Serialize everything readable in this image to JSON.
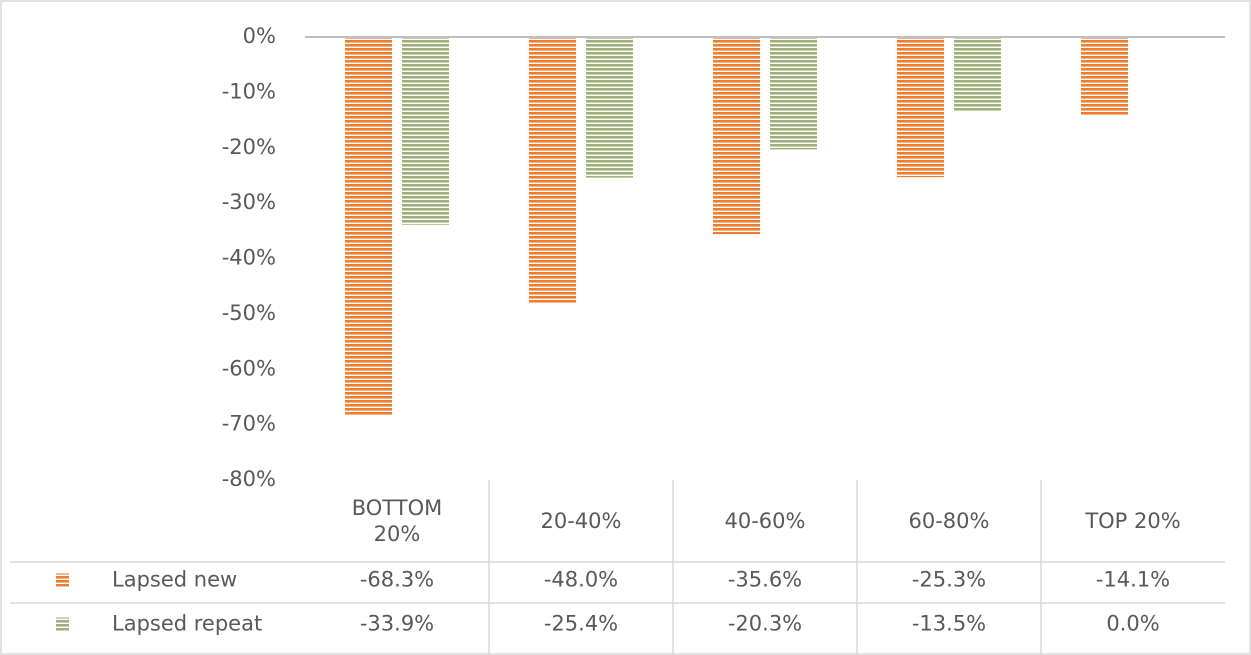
{
  "chart_data": {
    "type": "bar",
    "categories": [
      "BOTTOM 20%",
      "20-40%",
      "40-60%",
      "60-80%",
      "TOP 20%"
    ],
    "series": [
      {
        "name": "Lapsed new",
        "color": "#ed7d31",
        "values": [
          -68.3,
          -48.0,
          -35.6,
          -25.3,
          -14.1
        ],
        "value_labels": [
          "-68.3%",
          "-48.0%",
          "-35.6%",
          "-25.3%",
          "-14.1%"
        ]
      },
      {
        "name": "Lapsed repeat",
        "color": "#9fb07a",
        "values": [
          -33.9,
          -25.4,
          -20.3,
          -13.5,
          0
        ],
        "value_labels": [
          "-33.9%",
          "-25.4%",
          "-20.3%",
          "-13.5%",
          "0.0%"
        ]
      }
    ],
    "ylim": [
      -80,
      0
    ],
    "yticks": [
      {
        "value": 0,
        "label": "0%"
      },
      {
        "value": -10,
        "label": "-10%"
      },
      {
        "value": -20,
        "label": "-20%"
      },
      {
        "value": -30,
        "label": "-30%"
      },
      {
        "value": -40,
        "label": "-40%"
      },
      {
        "value": -50,
        "label": "-50%"
      },
      {
        "value": -60,
        "label": "-60%"
      },
      {
        "value": -70,
        "label": "-70%"
      },
      {
        "value": -80,
        "label": "-80%"
      }
    ],
    "data_table": true
  }
}
